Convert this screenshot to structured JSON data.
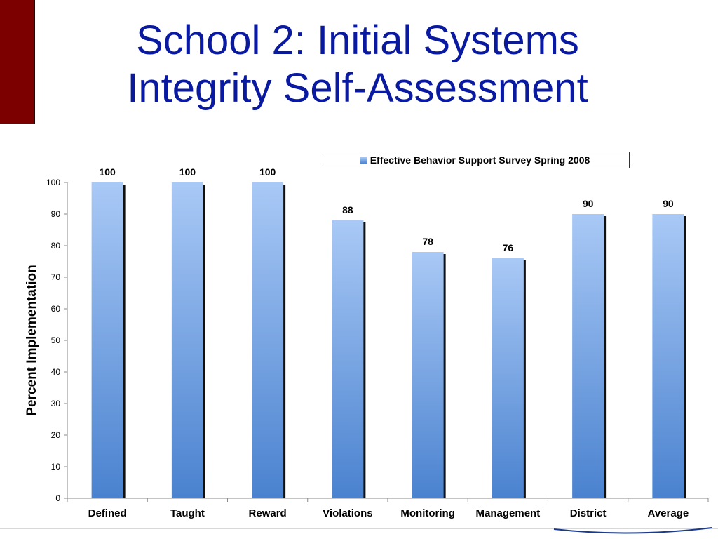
{
  "slide": {
    "title_line1": "School 2: Initial Systems",
    "title_line2": "Integrity Self-Assessment",
    "accent_color": "#7d0000",
    "title_color": "#0a1aa0"
  },
  "chart_data": {
    "type": "bar",
    "categories": [
      "Defined",
      "Taught",
      "Reward",
      "Violations",
      "Monitoring",
      "Management",
      "District",
      "Average"
    ],
    "series": [
      {
        "name": "Effective Behavior Support Survey Spring 2008",
        "values": [
          100,
          100,
          100,
          88,
          78,
          76,
          90,
          90
        ]
      }
    ],
    "data_labels": [
      "100",
      "100",
      "100",
      "88",
      "78",
      "76",
      "90",
      "90"
    ],
    "ylabel": "Percent Implementation",
    "xlabel": "",
    "ylim": [
      0,
      100
    ],
    "yticks": [
      0,
      10,
      20,
      30,
      40,
      50,
      60,
      70,
      80,
      90,
      100
    ],
    "grid": false,
    "legend_position": "top-right",
    "bar_color_top": "#a9c9f6",
    "bar_color_bottom": "#4a82cf"
  }
}
